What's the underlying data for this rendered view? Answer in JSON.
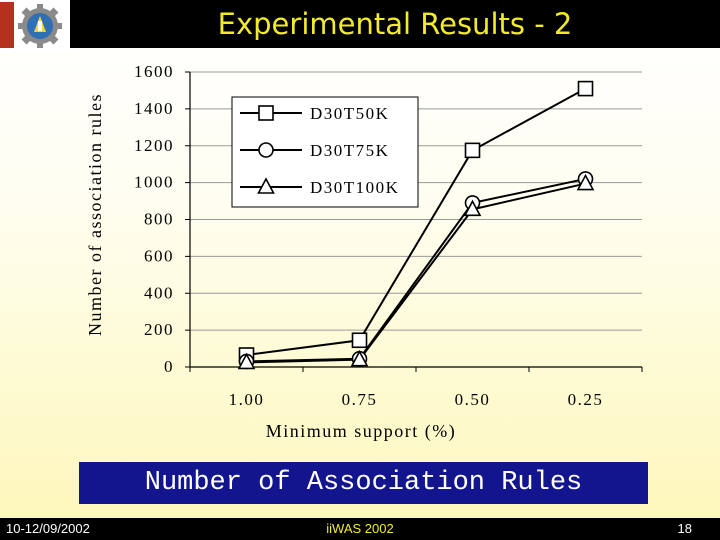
{
  "slide": {
    "title": "Experimental Results - 2",
    "caption": "Number of Association Rules"
  },
  "footer": {
    "date": "10-12/09/2002",
    "conference": "iiWAS 2002",
    "page": "18"
  },
  "colors": {
    "title_text": "#f3ea2a",
    "caption_bg": "#13158f",
    "logo_red": "#b5311e"
  },
  "chart_data": {
    "type": "line",
    "categories": [
      "1.00",
      "0.75",
      "0.50",
      "0.25"
    ],
    "series": [
      {
        "name": "D30T50K",
        "marker": "square",
        "values": [
          65,
          145,
          1175,
          1510
        ]
      },
      {
        "name": "D30T75K",
        "marker": "circle",
        "values": [
          30,
          45,
          890,
          1020
        ]
      },
      {
        "name": "D30T100K",
        "marker": "triangle",
        "values": [
          25,
          40,
          855,
          995
        ]
      }
    ],
    "xlabel": "Minimum support (%)",
    "ylabel": "Number of association rules",
    "ylim": [
      0,
      1600
    ],
    "yticks": [
      "0",
      "200",
      "400",
      "600",
      "800",
      "1000",
      "1200",
      "1400",
      "1600"
    ],
    "grid": true,
    "legend_position": "top-left"
  }
}
